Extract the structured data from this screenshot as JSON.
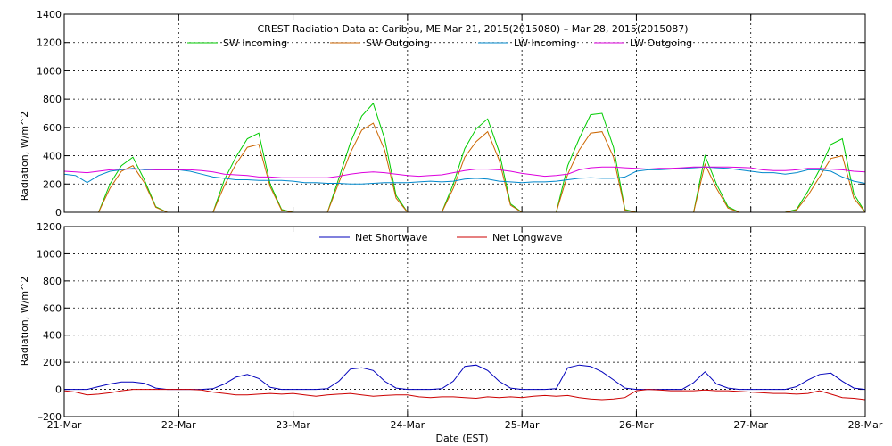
{
  "colors": {
    "sw_incoming": "#00cc00",
    "sw_outgoing": "#cc6600",
    "lw_incoming": "#0088cc",
    "lw_outgoing": "#dd00dd",
    "net_shortwave": "#0000bb",
    "net_longwave": "#cc0000"
  },
  "chart_data": [
    {
      "type": "line",
      "title": "CREST Radiation Data at Caribou, ME   Mar 21, 2015(2015080) – Mar 28, 2015(2015087)",
      "ylabel": "Radiation, W/m^2",
      "xlabel": "",
      "xlim": [
        0,
        7
      ],
      "ylim": [
        0,
        1400
      ],
      "yticks": [
        "0",
        "200",
        "400",
        "600",
        "800",
        "1000",
        "1200",
        "1400"
      ],
      "grid": true,
      "legend": "top",
      "legend_entries": [
        "SW Incoming",
        "SW Outgoing",
        "LW Incoming",
        "LW Outgoing"
      ],
      "x": [
        0.0,
        0.1,
        0.2,
        0.3,
        0.4,
        0.5,
        0.6,
        0.7,
        0.8,
        0.9,
        1.0,
        1.1,
        1.2,
        1.3,
        1.4,
        1.5,
        1.6,
        1.7,
        1.8,
        1.9,
        2.0,
        2.1,
        2.2,
        2.3,
        2.4,
        2.5,
        2.6,
        2.7,
        2.8,
        2.9,
        3.0,
        3.1,
        3.2,
        3.3,
        3.4,
        3.5,
        3.6,
        3.7,
        3.8,
        3.9,
        4.0,
        4.1,
        4.2,
        4.3,
        4.4,
        4.5,
        4.6,
        4.7,
        4.8,
        4.9,
        5.0,
        5.1,
        5.2,
        5.3,
        5.4,
        5.5,
        5.6,
        5.7,
        5.8,
        5.9,
        6.0,
        6.1,
        6.2,
        6.3,
        6.4,
        6.5,
        6.6,
        6.7,
        6.8,
        6.9,
        7.0
      ],
      "series": [
        {
          "name": "SW Incoming",
          "values": [
            0,
            0,
            0,
            0,
            200,
            330,
            390,
            230,
            40,
            0,
            0,
            0,
            0,
            0,
            230,
            390,
            520,
            560,
            200,
            20,
            0,
            0,
            0,
            0,
            240,
            490,
            680,
            770,
            520,
            120,
            0,
            0,
            0,
            0,
            200,
            450,
            590,
            660,
            430,
            60,
            0,
            0,
            0,
            0,
            330,
            520,
            690,
            700,
            460,
            20,
            0,
            0,
            0,
            0,
            0,
            0,
            400,
            200,
            40,
            0,
            0,
            0,
            0,
            0,
            20,
            150,
            300,
            480,
            520,
            130,
            0
          ]
        },
        {
          "name": "SW Outgoing",
          "values": [
            0,
            0,
            0,
            0,
            170,
            290,
            330,
            210,
            35,
            0,
            0,
            0,
            0,
            0,
            190,
            340,
            460,
            480,
            180,
            15,
            0,
            0,
            0,
            0,
            210,
            420,
            580,
            630,
            440,
            100,
            0,
            0,
            0,
            0,
            170,
            390,
            500,
            570,
            370,
            50,
            0,
            0,
            0,
            0,
            270,
            440,
            560,
            570,
            390,
            15,
            0,
            0,
            0,
            0,
            0,
            0,
            340,
            170,
            30,
            0,
            0,
            0,
            0,
            0,
            15,
            120,
            250,
            380,
            400,
            100,
            0
          ]
        },
        {
          "name": "LW Incoming",
          "values": [
            270,
            260,
            210,
            260,
            290,
            300,
            310,
            300,
            300,
            300,
            300,
            290,
            270,
            250,
            240,
            230,
            230,
            225,
            225,
            225,
            220,
            210,
            210,
            205,
            205,
            200,
            200,
            205,
            210,
            210,
            210,
            215,
            220,
            215,
            220,
            235,
            240,
            235,
            220,
            215,
            210,
            215,
            215,
            220,
            230,
            240,
            245,
            240,
            240,
            250,
            290,
            300,
            300,
            305,
            310,
            315,
            320,
            315,
            310,
            300,
            290,
            280,
            280,
            270,
            280,
            300,
            300,
            290,
            250,
            220,
            205
          ]
        },
        {
          "name": "LW Outgoing",
          "values": [
            290,
            285,
            280,
            290,
            300,
            305,
            305,
            305,
            300,
            300,
            300,
            300,
            295,
            285,
            270,
            265,
            260,
            250,
            250,
            245,
            245,
            245,
            245,
            245,
            255,
            270,
            280,
            285,
            280,
            270,
            260,
            255,
            260,
            265,
            280,
            295,
            305,
            305,
            300,
            290,
            275,
            265,
            255,
            260,
            270,
            300,
            315,
            320,
            320,
            315,
            310,
            305,
            310,
            310,
            315,
            320,
            320,
            320,
            320,
            318,
            315,
            300,
            295,
            295,
            300,
            310,
            310,
            305,
            300,
            290,
            285
          ]
        }
      ]
    },
    {
      "type": "line",
      "title": "",
      "ylabel": "Radiation, W/m^2",
      "xlabel": "Date (EST)",
      "xlim": [
        0,
        7
      ],
      "ylim": [
        -200,
        1200
      ],
      "yticks": [
        "–200",
        "0",
        "200",
        "400",
        "600",
        "800",
        "1000",
        "1200"
      ],
      "xtick_labels": [
        "21-Mar",
        "22-Mar",
        "23-Mar",
        "24-Mar",
        "25-Mar",
        "26-Mar",
        "27-Mar",
        "28-Mar"
      ],
      "grid": true,
      "legend": "top",
      "legend_entries": [
        "Net Shortwave",
        "Net Longwave"
      ],
      "x": [
        0.0,
        0.1,
        0.2,
        0.3,
        0.4,
        0.5,
        0.6,
        0.7,
        0.8,
        0.9,
        1.0,
        1.1,
        1.2,
        1.3,
        1.4,
        1.5,
        1.6,
        1.7,
        1.8,
        1.9,
        2.0,
        2.1,
        2.2,
        2.3,
        2.4,
        2.5,
        2.6,
        2.7,
        2.8,
        2.9,
        3.0,
        3.1,
        3.2,
        3.3,
        3.4,
        3.5,
        3.6,
        3.7,
        3.8,
        3.9,
        4.0,
        4.1,
        4.2,
        4.3,
        4.4,
        4.5,
        4.6,
        4.7,
        4.8,
        4.9,
        5.0,
        5.1,
        5.2,
        5.3,
        5.4,
        5.5,
        5.6,
        5.7,
        5.8,
        5.9,
        6.0,
        6.1,
        6.2,
        6.3,
        6.4,
        6.5,
        6.6,
        6.7,
        6.8,
        6.9,
        7.0
      ],
      "series": [
        {
          "name": "Net Shortwave",
          "values": [
            0,
            0,
            0,
            20,
            40,
            55,
            55,
            45,
            10,
            0,
            0,
            0,
            0,
            5,
            40,
            90,
            110,
            80,
            15,
            0,
            0,
            0,
            0,
            5,
            60,
            150,
            160,
            140,
            60,
            10,
            0,
            0,
            0,
            5,
            60,
            170,
            180,
            140,
            60,
            10,
            0,
            0,
            0,
            5,
            160,
            180,
            170,
            130,
            70,
            10,
            0,
            0,
            0,
            0,
            0,
            50,
            130,
            40,
            10,
            0,
            0,
            0,
            0,
            0,
            20,
            70,
            110,
            120,
            60,
            10,
            0
          ]
        },
        {
          "name": "Net Longwave",
          "values": [
            -10,
            -20,
            -40,
            -35,
            -25,
            -10,
            0,
            0,
            0,
            0,
            0,
            0,
            -5,
            -20,
            -30,
            -40,
            -40,
            -35,
            -30,
            -35,
            -30,
            -40,
            -50,
            -40,
            -35,
            -30,
            -40,
            -50,
            -45,
            -40,
            -40,
            -55,
            -60,
            -55,
            -55,
            -60,
            -65,
            -55,
            -60,
            -55,
            -60,
            -50,
            -45,
            -50,
            -45,
            -60,
            -70,
            -75,
            -70,
            -60,
            -10,
            0,
            -5,
            -10,
            -10,
            -10,
            -5,
            -10,
            -10,
            -15,
            -20,
            -25,
            -30,
            -30,
            -35,
            -30,
            -10,
            -35,
            -60,
            -65,
            -75
          ]
        }
      ]
    }
  ]
}
